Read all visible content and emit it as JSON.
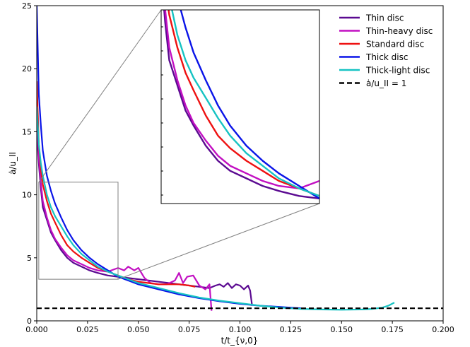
{
  "chart_data": {
    "type": "line",
    "title": "",
    "xlabel": "t/t_{ν,0}",
    "ylabel": "ȧ/u_II",
    "xlim": [
      0,
      0.2
    ],
    "ylim": [
      0,
      25
    ],
    "x_ticks": [
      "0.000",
      "0.025",
      "0.050",
      "0.075",
      "0.100",
      "0.125",
      "0.150",
      "0.175",
      "0.200"
    ],
    "y_ticks": [
      "0",
      "5",
      "10",
      "15",
      "20",
      "25"
    ],
    "legend_placement": "upper-right",
    "grid": false,
    "series": [
      {
        "name": "Thin disc",
        "color": "#5b0a91",
        "x": [
          0.0,
          0.001,
          0.002,
          0.003,
          0.005,
          0.007,
          0.009,
          0.012,
          0.015,
          0.018,
          0.022,
          0.026,
          0.03,
          0.035,
          0.04,
          0.045,
          0.05,
          0.055,
          0.06,
          0.065,
          0.07,
          0.075,
          0.08,
          0.085,
          0.088,
          0.09,
          0.092,
          0.094,
          0.096,
          0.098,
          0.1,
          0.102,
          0.104,
          0.105,
          0.106
        ],
        "y": [
          15.0,
          12.5,
          10.5,
          9.0,
          8.0,
          7.0,
          6.4,
          5.6,
          5.0,
          4.6,
          4.3,
          4.0,
          3.8,
          3.6,
          3.5,
          3.4,
          3.3,
          3.2,
          3.1,
          3.0,
          2.9,
          2.8,
          2.7,
          2.6,
          2.8,
          2.9,
          2.7,
          3.0,
          2.6,
          2.9,
          2.8,
          2.5,
          2.8,
          2.4,
          1.2
        ]
      },
      {
        "name": "Thin-heavy disc",
        "color": "#c20fc2",
        "x": [
          0.0,
          0.001,
          0.002,
          0.003,
          0.005,
          0.007,
          0.009,
          0.012,
          0.015,
          0.018,
          0.022,
          0.026,
          0.03,
          0.035,
          0.04,
          0.043,
          0.045,
          0.048,
          0.05,
          0.053,
          0.056,
          0.06,
          0.064,
          0.068,
          0.07,
          0.072,
          0.074,
          0.077,
          0.08,
          0.083,
          0.085,
          0.086
        ],
        "y": [
          17.0,
          13.0,
          11.0,
          9.5,
          8.2,
          7.2,
          6.5,
          5.8,
          5.2,
          4.8,
          4.5,
          4.2,
          4.0,
          3.9,
          4.2,
          4.0,
          4.3,
          4.0,
          4.2,
          3.4,
          3.0,
          2.9,
          2.9,
          3.2,
          3.8,
          3.0,
          3.5,
          3.6,
          2.8,
          2.5,
          2.9,
          0.8
        ]
      },
      {
        "name": "Standard disc",
        "color": "#ee1111",
        "x": [
          0.0,
          0.001,
          0.002,
          0.003,
          0.005,
          0.007,
          0.009,
          0.012,
          0.015,
          0.018,
          0.022,
          0.026,
          0.03,
          0.035,
          0.04,
          0.045,
          0.05,
          0.055,
          0.06,
          0.065,
          0.07,
          0.075,
          0.078
        ],
        "y": [
          19.0,
          14.0,
          12.0,
          10.8,
          9.5,
          8.5,
          7.8,
          6.8,
          6.0,
          5.5,
          5.0,
          4.6,
          4.2,
          3.9,
          3.6,
          3.3,
          3.1,
          3.0,
          2.9,
          2.9,
          2.9,
          2.8,
          2.7
        ]
      },
      {
        "name": "Thick disc",
        "color": "#0a14e8",
        "x": [
          0.0,
          0.001,
          0.002,
          0.003,
          0.005,
          0.007,
          0.009,
          0.012,
          0.015,
          0.018,
          0.022,
          0.026,
          0.03,
          0.035,
          0.04,
          0.045,
          0.05,
          0.06,
          0.07,
          0.08,
          0.09,
          0.1,
          0.11,
          0.12,
          0.125,
          0.13
        ],
        "y": [
          25.0,
          18.0,
          15.5,
          13.5,
          11.5,
          10.3,
          9.3,
          8.2,
          7.2,
          6.4,
          5.6,
          5.0,
          4.5,
          4.0,
          3.5,
          3.2,
          2.9,
          2.5,
          2.1,
          1.8,
          1.55,
          1.35,
          1.2,
          1.1,
          1.05,
          1.0
        ]
      },
      {
        "name": "Thick-light disc",
        "color": "#16c3c3",
        "x": [
          0.0,
          0.001,
          0.002,
          0.003,
          0.005,
          0.007,
          0.009,
          0.012,
          0.015,
          0.018,
          0.022,
          0.026,
          0.03,
          0.035,
          0.04,
          0.045,
          0.05,
          0.06,
          0.07,
          0.08,
          0.09,
          0.1,
          0.11,
          0.12,
          0.13,
          0.14,
          0.15,
          0.16,
          0.165,
          0.17,
          0.173,
          0.176
        ],
        "y": [
          17.0,
          14.0,
          12.5,
          11.5,
          10.0,
          9.0,
          8.3,
          7.5,
          6.7,
          6.0,
          5.3,
          4.8,
          4.3,
          3.9,
          3.6,
          3.3,
          3.0,
          2.6,
          2.2,
          1.85,
          1.6,
          1.4,
          1.2,
          1.05,
          0.95,
          0.9,
          0.88,
          0.9,
          0.95,
          1.05,
          1.2,
          1.45
        ]
      },
      {
        "name": "ȧ/u_II = 1",
        "color": "#000000",
        "dashed": true,
        "x": [
          0.0,
          0.2
        ],
        "y": [
          1.0,
          1.0
        ]
      }
    ],
    "inset": {
      "xlim": [
        0.001,
        0.04
      ],
      "ylim": [
        3.3,
        11.0
      ]
    }
  }
}
